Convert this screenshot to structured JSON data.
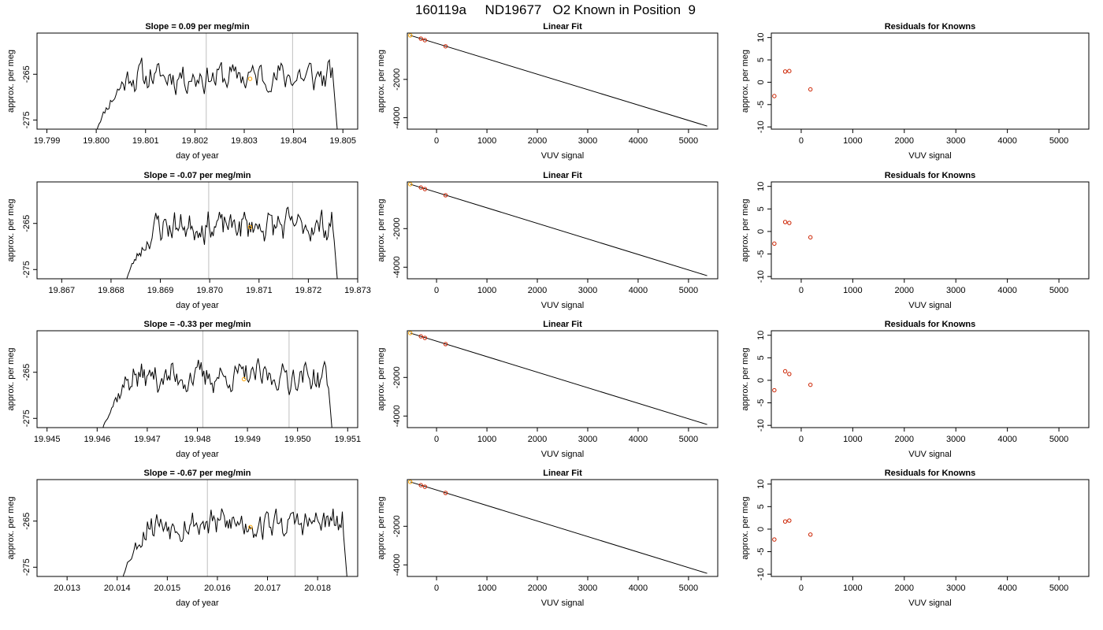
{
  "main_title": "160119a     ND19677   O2 Known in Position  9",
  "colors": {
    "trace": "#000000",
    "marker": "#ffa500",
    "fitline": "#000000",
    "residual": "#cc2200",
    "vline": "#bfbfbf"
  },
  "chart_data": [
    {
      "panel": "trace",
      "type": "line",
      "row": 1,
      "title": "Slope =  0.09  per meg/min",
      "xlabel": "day of year",
      "ylabel": "approx. per meg",
      "xlim": [
        19.7988,
        19.8053
      ],
      "ylim": [
        -277,
        -256
      ],
      "xticks": [
        19.799,
        19.8,
        19.801,
        19.802,
        19.803,
        19.804,
        19.805
      ],
      "xtick_labels": [
        "19.799",
        "19.800",
        "19.801",
        "19.802",
        "19.803",
        "19.804",
        "19.805"
      ],
      "yticks": [
        -265,
        -275
      ],
      "ytick_labels": [
        "-265",
        "-275"
      ],
      "vlines": [
        19.80223,
        19.80398
      ],
      "x_start": 19.8,
      "x_end": 19.8049,
      "plateau": -265.5,
      "rise_x": 19.80058,
      "end_x": 19.8048,
      "marker": [
        19.80312,
        -266
      ],
      "seed": 11
    },
    {
      "panel": "fit",
      "type": "scatter",
      "row": 1,
      "title": "Linear Fit",
      "xlabel": "VUV signal",
      "ylabel": "approx. per meg",
      "xlim": [
        -580,
        5580
      ],
      "ylim": [
        -4600,
        420
      ],
      "xticks": [
        0,
        1000,
        2000,
        3000,
        4000,
        5000
      ],
      "xtick_labels": [
        "0",
        "1000",
        "2000",
        "3000",
        "4000",
        "5000"
      ],
      "yticks": [
        -2000,
        -4000
      ],
      "ytick_labels": [
        "-2000",
        "-4000"
      ],
      "points_x": [
        -521,
        -311,
        -231,
        179
      ],
      "points_y": [
        300,
        130,
        50,
        -270
      ],
      "marker_index": 0,
      "fit_line": {
        "x0": -521,
        "y0": 300,
        "x1": 5370,
        "y1": -4440
      }
    },
    {
      "panel": "residual",
      "type": "scatter",
      "row": 1,
      "title": "Residuals for Knowns",
      "xlabel": "VUV signal",
      "ylabel": "approx. per meg",
      "xlim": [
        -580,
        5580
      ],
      "ylim": [
        -10.5,
        11
      ],
      "xticks": [
        0,
        1000,
        2000,
        3000,
        4000,
        5000
      ],
      "xtick_labels": [
        "0",
        "1000",
        "2000",
        "3000",
        "4000",
        "5000"
      ],
      "yticks": [
        10,
        5,
        0,
        -5,
        -10
      ],
      "ytick_labels": [
        "10",
        "5",
        "0",
        "-5",
        "-10"
      ],
      "points_x": [
        -521,
        -311,
        -231,
        179
      ],
      "points_y": [
        -3.1,
        2.4,
        2.5,
        -1.6
      ]
    },
    {
      "panel": "trace",
      "type": "line",
      "row": 2,
      "title": "Slope =  -0.07  per meg/min",
      "xlabel": "day of year",
      "ylabel": "approx. per meg",
      "xlim": [
        19.8665,
        19.873
      ],
      "ylim": [
        -277,
        -256
      ],
      "xticks": [
        19.867,
        19.868,
        19.869,
        19.87,
        19.871,
        19.872,
        19.873
      ],
      "xtick_labels": [
        "19.867",
        "19.868",
        "19.869",
        "19.870",
        "19.871",
        "19.872",
        "19.873"
      ],
      "yticks": [
        -265,
        -275
      ],
      "ytick_labels": [
        "-265",
        "-275"
      ],
      "vlines": [
        19.86998,
        19.87168
      ],
      "x_start": 19.8683,
      "x_end": 19.8726,
      "plateau": -265.5,
      "rise_x": 19.8689,
      "end_x": 19.8725,
      "marker": [
        19.87082,
        -265.8
      ],
      "seed": 23
    },
    {
      "panel": "fit",
      "type": "scatter",
      "row": 2,
      "title": "Linear Fit",
      "xlabel": "VUV signal",
      "ylabel": "approx. per meg",
      "xlim": [
        -580,
        5580
      ],
      "ylim": [
        -4600,
        420
      ],
      "xticks": [
        0,
        1000,
        2000,
        3000,
        4000,
        5000
      ],
      "xtick_labels": [
        "0",
        "1000",
        "2000",
        "3000",
        "4000",
        "5000"
      ],
      "yticks": [
        -2000,
        -4000
      ],
      "ytick_labels": [
        "-2000",
        "-4000"
      ],
      "points_x": [
        -521,
        -311,
        -231,
        179
      ],
      "points_y": [
        300,
        130,
        50,
        -270
      ],
      "marker_index": 0,
      "fit_line": {
        "x0": -521,
        "y0": 300,
        "x1": 5370,
        "y1": -4440
      }
    },
    {
      "panel": "residual",
      "type": "scatter",
      "row": 2,
      "title": "Residuals for Knowns",
      "xlabel": "VUV signal",
      "ylabel": "approx. per meg",
      "xlim": [
        -580,
        5580
      ],
      "ylim": [
        -10.5,
        11
      ],
      "xticks": [
        0,
        1000,
        2000,
        3000,
        4000,
        5000
      ],
      "xtick_labels": [
        "0",
        "1000",
        "2000",
        "3000",
        "4000",
        "5000"
      ],
      "yticks": [
        10,
        5,
        0,
        -5,
        -10
      ],
      "ytick_labels": [
        "10",
        "5",
        "0",
        "-5",
        "-10"
      ],
      "points_x": [
        -521,
        -311,
        -231,
        179
      ],
      "points_y": [
        -2.7,
        2.1,
        1.9,
        -1.3
      ]
    },
    {
      "panel": "trace",
      "type": "line",
      "row": 3,
      "title": "Slope =  -0.33  per meg/min",
      "xlabel": "day of year",
      "ylabel": "approx. per meg",
      "xlim": [
        19.9448,
        19.9512
      ],
      "ylim": [
        -277,
        -256
      ],
      "xticks": [
        19.945,
        19.946,
        19.947,
        19.948,
        19.949,
        19.95,
        19.951
      ],
      "xtick_labels": [
        "19.945",
        "19.946",
        "19.947",
        "19.948",
        "19.949",
        "19.950",
        "19.951"
      ],
      "yticks": [
        -265,
        -275
      ],
      "ytick_labels": [
        "-265",
        "-275"
      ],
      "vlines": [
        19.94811,
        19.94983
      ],
      "x_start": 19.9461,
      "x_end": 19.9507,
      "plateau": -266,
      "rise_x": 19.9466,
      "end_x": 19.9506,
      "marker": [
        19.94893,
        -266.5
      ],
      "seed": 37
    },
    {
      "panel": "fit",
      "type": "scatter",
      "row": 3,
      "title": "Linear Fit",
      "xlabel": "VUV signal",
      "ylabel": "approx. per meg",
      "xlim": [
        -580,
        5580
      ],
      "ylim": [
        -4600,
        420
      ],
      "xticks": [
        0,
        1000,
        2000,
        3000,
        4000,
        5000
      ],
      "xtick_labels": [
        "0",
        "1000",
        "2000",
        "3000",
        "4000",
        "5000"
      ],
      "yticks": [
        -2000,
        -4000
      ],
      "ytick_labels": [
        "-2000",
        "-4000"
      ],
      "points_x": [
        -521,
        -311,
        -231,
        179
      ],
      "points_y": [
        300,
        130,
        50,
        -270
      ],
      "marker_index": 0,
      "fit_line": {
        "x0": -521,
        "y0": 300,
        "x1": 5370,
        "y1": -4440
      }
    },
    {
      "panel": "residual",
      "type": "scatter",
      "row": 3,
      "title": "Residuals for Knowns",
      "xlabel": "VUV signal",
      "ylabel": "approx. per meg",
      "xlim": [
        -580,
        5580
      ],
      "ylim": [
        -10.5,
        11
      ],
      "xticks": [
        0,
        1000,
        2000,
        3000,
        4000,
        5000
      ],
      "xtick_labels": [
        "0",
        "1000",
        "2000",
        "3000",
        "4000",
        "5000"
      ],
      "yticks": [
        10,
        5,
        0,
        -5,
        -10
      ],
      "ytick_labels": [
        "10",
        "5",
        "0",
        "-5",
        "-10"
      ],
      "points_x": [
        -521,
        -311,
        -231,
        179
      ],
      "points_y": [
        -2.2,
        2.0,
        1.4,
        -1.0
      ]
    },
    {
      "panel": "trace",
      "type": "line",
      "row": 4,
      "title": "Slope =  -0.67  per meg/min",
      "xlabel": "day of year",
      "ylabel": "approx. per meg",
      "xlim": [
        20.0124,
        20.0188
      ],
      "ylim": [
        -277,
        -256
      ],
      "xticks": [
        20.013,
        20.014,
        20.015,
        20.016,
        20.017,
        20.018
      ],
      "xtick_labels": [
        "20.013",
        "20.014",
        "20.015",
        "20.016",
        "20.017",
        "20.018"
      ],
      "yticks": [
        -265,
        -275
      ],
      "ytick_labels": [
        "-265",
        "-275"
      ],
      "vlines": [
        20.0158,
        20.01755
      ],
      "x_start": 20.0141,
      "x_end": 20.0186,
      "plateau": -265.5,
      "rise_x": 20.0146,
      "end_x": 20.0185,
      "marker": [
        20.01666,
        -266.3
      ],
      "seed": 53
    },
    {
      "panel": "fit",
      "type": "scatter",
      "row": 4,
      "title": "Linear Fit",
      "xlabel": "VUV signal",
      "ylabel": "approx. per meg",
      "xlim": [
        -580,
        5580
      ],
      "ylim": [
        -4600,
        420
      ],
      "xticks": [
        0,
        1000,
        2000,
        3000,
        4000,
        5000
      ],
      "xtick_labels": [
        "0",
        "1000",
        "2000",
        "3000",
        "4000",
        "5000"
      ],
      "yticks": [
        -2000,
        -4000
      ],
      "ytick_labels": [
        "-2000",
        "-4000"
      ],
      "points_x": [
        -521,
        -311,
        -231,
        179
      ],
      "points_y": [
        300,
        130,
        50,
        -270
      ],
      "marker_index": 0,
      "fit_line": {
        "x0": -521,
        "y0": 300,
        "x1": 5370,
        "y1": -4440
      }
    },
    {
      "panel": "residual",
      "type": "scatter",
      "row": 4,
      "title": "Residuals for Knowns",
      "xlabel": "VUV signal",
      "ylabel": "approx. per meg",
      "xlim": [
        -580,
        5580
      ],
      "ylim": [
        -10.5,
        11
      ],
      "xticks": [
        0,
        1000,
        2000,
        3000,
        4000,
        5000
      ],
      "xtick_labels": [
        "0",
        "1000",
        "2000",
        "3000",
        "4000",
        "5000"
      ],
      "yticks": [
        10,
        5,
        0,
        -5,
        -10
      ],
      "ytick_labels": [
        "10",
        "5",
        "0",
        "-5",
        "-10"
      ],
      "points_x": [
        -521,
        -311,
        -231,
        179
      ],
      "points_y": [
        -2.3,
        1.7,
        1.9,
        -1.2
      ]
    }
  ]
}
